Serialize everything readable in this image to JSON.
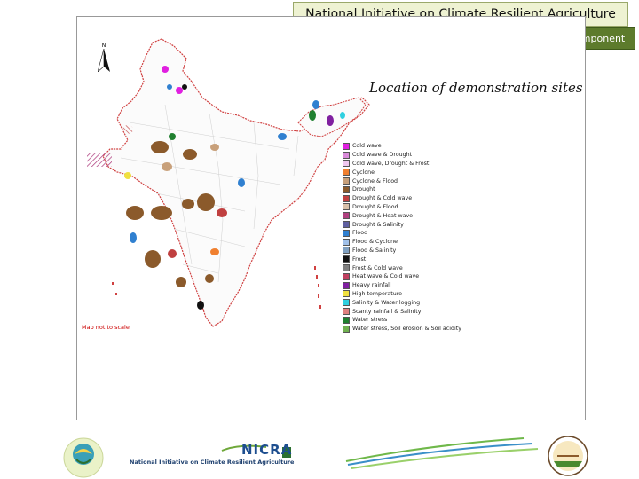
{
  "header": {
    "title": "National Initiative on Climate Resilient Agriculture",
    "subtitle": "Technology Demonstration Component"
  },
  "map": {
    "title": "Location of demonstration sites",
    "north_label": "N",
    "scale_note": "Map not to scale",
    "legend": [
      {
        "label": "Cold wave",
        "color": "#e020e0"
      },
      {
        "label": "Cold wave & Drought",
        "color": "#d98ad9"
      },
      {
        "label": "Cold wave, Drought & Frost",
        "color": "#f0c8f0"
      },
      {
        "label": "Cyclone",
        "color": "#f08030"
      },
      {
        "label": "Cyclone & Flood",
        "color": "#c8a07a"
      },
      {
        "label": "Drought",
        "color": "#8b5a2b"
      },
      {
        "label": "Drought & Cold wave",
        "color": "#c04040"
      },
      {
        "label": "Drought & Flood",
        "color": "#d8c0a8"
      },
      {
        "label": "Drought & Heat wave",
        "color": "#b04080"
      },
      {
        "label": "Drought & Salinity",
        "color": "#6060a0"
      },
      {
        "label": "Flood",
        "color": "#3080d0"
      },
      {
        "label": "Flood & Cyclone",
        "color": "#a0c0e8"
      },
      {
        "label": "Flood & Salinity",
        "color": "#80a0c0"
      },
      {
        "label": "Frost",
        "color": "#101010"
      },
      {
        "label": "Frost & Cold wave",
        "color": "#808080"
      },
      {
        "label": "Heat wave & Cold wave",
        "color": "#c04060"
      },
      {
        "label": "Heavy rainfall",
        "color": "#8020a0"
      },
      {
        "label": "High temperature",
        "color": "#f0e040"
      },
      {
        "label": "Salinity & Water logging",
        "color": "#30d0e0"
      },
      {
        "label": "Scanty rainfall & Salinity",
        "color": "#e08080"
      },
      {
        "label": "Water stress",
        "color": "#208030"
      },
      {
        "label": "Water stress, Soil erosion & Soil acidity",
        "color": "#70b050"
      }
    ]
  },
  "footer": {
    "org_name": "National Initiative on Climate Resilient Agriculture",
    "logo_text": "NICRA"
  }
}
